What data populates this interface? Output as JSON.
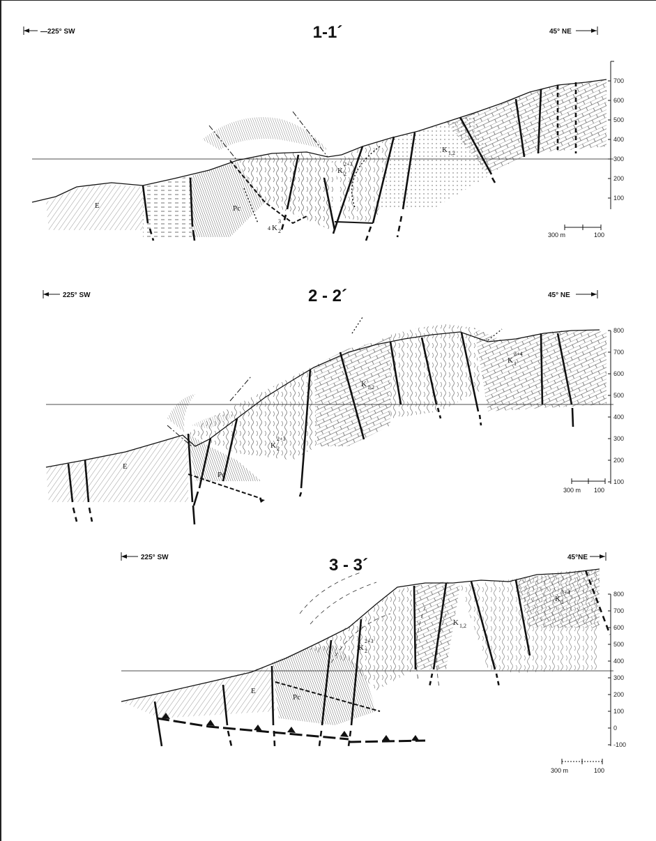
{
  "sections": [
    {
      "title": "1-1´",
      "dir_left": "—225° SW",
      "dir_right": "45° NE",
      "elevations": [
        "700",
        "600",
        "500",
        "400",
        "300",
        "200",
        "100"
      ],
      "scale": {
        "left": "300 m",
        "right": "100"
      },
      "units": {
        "e": "E",
        "pc": "Pc",
        "k2_main": "K",
        "k2_sup": "2+3",
        "k2_sub": "2",
        "k12_main": "K",
        "k12_sub": "1,2",
        "k23_prefix": "4",
        "k23_main": "K",
        "k23_sup": "3",
        "k23_sub": "2"
      }
    },
    {
      "title": "2 - 2´",
      "dir_left": "225° SW",
      "dir_right": "45° NE",
      "elevations": [
        "800",
        "700",
        "600",
        "500",
        "400",
        "300",
        "200",
        "100"
      ],
      "scale": {
        "left": "300 m",
        "right": "100"
      },
      "units": {
        "e": "E",
        "pc": "Pc",
        "k2_main": "K",
        "k2_sup": "2+3",
        "k2_sub": "2",
        "k12_main": "K",
        "k12_sub": "1,2",
        "k13_main": "K",
        "k13_sup": "3+4",
        "k13_sub": "1"
      }
    },
    {
      "title": "3 - 3´",
      "dir_left": "225° SW",
      "dir_right": "45°NE",
      "elevations": [
        "800",
        "700",
        "600",
        "500",
        "400",
        "300",
        "200",
        "100",
        "0",
        "-100"
      ],
      "scale": {
        "left": "300 m",
        "right": "100"
      },
      "units": {
        "e": "E",
        "pc": "Pc",
        "k2_main": "K",
        "k2_sup": "2+3",
        "k2_sub": "2",
        "k12_main": "K",
        "k12_sub": "1,2",
        "k13_main": "K",
        "k13_sup": "3+4",
        "k13_sub": "1"
      }
    }
  ]
}
